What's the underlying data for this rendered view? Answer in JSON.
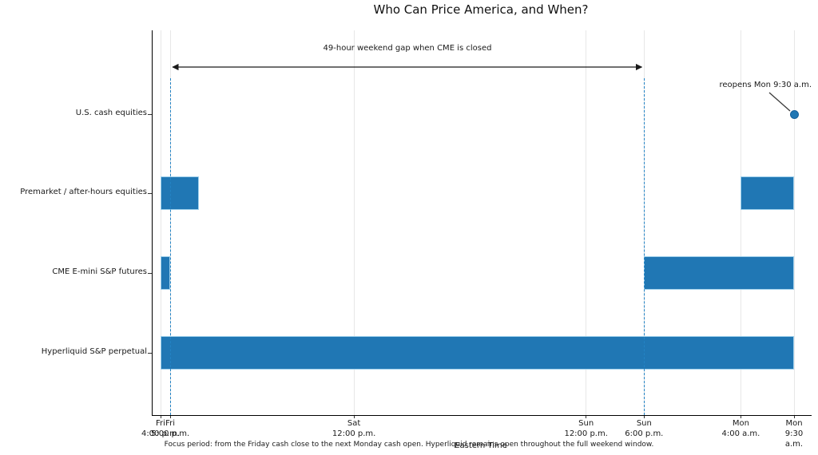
{
  "chart_data": {
    "type": "bar",
    "variant": "gantt-timeline",
    "title": "Who Can Price America, and When?",
    "xlabel": "Eastern Time",
    "footer": "Focus period: from the Friday cash close to the next Monday cash open. Hyperliquid remains open throughout the full weekend window.",
    "x_axis": {
      "unit": "hours after Friday 4:00 p.m. ET",
      "range": [
        0,
        65.5
      ],
      "grid": true,
      "ticks": [
        {
          "hour": 0,
          "day": "Fri",
          "time": "4:00 p.m."
        },
        {
          "hour": 1,
          "day": "Fri",
          "time": "5:00 p.m."
        },
        {
          "hour": 20,
          "day": "Sat",
          "time": "12:00 p.m."
        },
        {
          "hour": 44,
          "day": "Sun",
          "time": "12:00 p.m."
        },
        {
          "hour": 50,
          "day": "Sun",
          "time": "6:00 p.m."
        },
        {
          "hour": 60,
          "day": "Mon",
          "time": "4:00 a.m."
        },
        {
          "hour": 65.5,
          "day": "Mon",
          "time": "9:30 a.m."
        }
      ]
    },
    "rows": [
      {
        "label": "U.S. cash equities",
        "segments": [],
        "marker_hour": 65.5
      },
      {
        "label": "Premarket / after-hours equities",
        "segments": [
          [
            0,
            4
          ],
          [
            60,
            65.5
          ]
        ]
      },
      {
        "label": "CME E-mini S&P futures",
        "segments": [
          [
            0,
            1
          ],
          [
            50,
            65.5
          ]
        ]
      },
      {
        "label": "Hyperliquid S&P perpetual",
        "segments": [
          [
            0,
            65.5
          ]
        ]
      }
    ],
    "reference_lines": [
      {
        "hour": 1
      },
      {
        "hour": 50
      }
    ],
    "annotations": {
      "gap_span": {
        "text": "49-hour weekend gap when CME is closed",
        "from_hour": 1,
        "to_hour": 50
      },
      "reopen": {
        "text": "reopens Mon 9:30 a.m.",
        "target_hour": 65.5,
        "target_row": "U.S. cash equities"
      }
    },
    "colors": {
      "bar_fill": "#2077b4",
      "bar_edge": "#9fd0ec",
      "reference_line": "#2383c4",
      "grid": "#e7e7e7",
      "axis": "#000000",
      "arrow": "#1a1a1a",
      "marker_dot": "#2077b4"
    },
    "legend": null
  }
}
